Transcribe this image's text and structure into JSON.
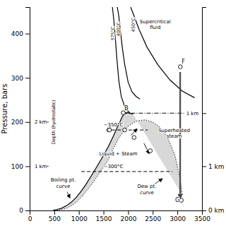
{
  "chart_data": {
    "type": "line",
    "ylabel": "Pressure, bars",
    "xlim": [
      0,
      3500
    ],
    "ylim": [
      0,
      460
    ],
    "xticks": [
      0,
      500,
      1000,
      1500,
      2000,
      2500,
      3000,
      3500
    ],
    "yticks": [
      0,
      100,
      200,
      300,
      400
    ],
    "y2lim": [
      0,
      460
    ],
    "y2ticks": [
      {
        "value": 0,
        "label": "0 km"
      },
      {
        "value": 100,
        "label": "1 km"
      },
      {
        "value": 220,
        "label": null
      }
    ],
    "series": [
      {
        "type": "area",
        "color": "#c8c8c8",
        "x": [
          480,
          550,
          650,
          750,
          850,
          950,
          1050,
          1150,
          1300,
          1450,
          1600,
          1700,
          1780,
          1840,
          1880,
          1920,
          1960,
          1990,
          2020,
          2060,
          2100,
          3100,
          3050,
          2950,
          2800,
          2650,
          2500,
          2350,
          2200,
          2100,
          2000,
          1900,
          1800,
          1700,
          1600,
          1450,
          1300,
          1150,
          1050,
          950,
          850,
          750,
          650,
          550
        ],
        "values": [
          0.5,
          2,
          5,
          11,
          19,
          30,
          44,
          60,
          87,
          115,
          145,
          168,
          188,
          202,
          212,
          218,
          221,
          221,
          220,
          219,
          218,
          35,
          75,
          125,
          165,
          188,
          200,
          205,
          203,
          198,
          190,
          178,
          162,
          140,
          115,
          90,
          65,
          44,
          30,
          19,
          11,
          5,
          2,
          0.5
        ]
      },
      {
        "type": "line",
        "color": "#000000",
        "line_style": "solid",
        "x": [
          480,
          550,
          650,
          750,
          850,
          950,
          1050,
          1150,
          1300,
          1450,
          1600,
          1700,
          1780,
          1840,
          1880,
          1920,
          1960,
          1990,
          2020,
          2060,
          2100
        ],
        "values": [
          0.5,
          2,
          5,
          11,
          19,
          30,
          44,
          60,
          87,
          115,
          145,
          168,
          188,
          202,
          212,
          218,
          221,
          221,
          220,
          219,
          218
        ]
      },
      {
        "type": "line",
        "color": "#000000",
        "line_style": "dotted",
        "x": [
          550,
          650,
          750,
          850,
          950,
          1050,
          1150,
          1300,
          1450,
          1600,
          1700,
          1800,
          1900,
          2000,
          2100,
          2200,
          2350,
          2500,
          2650,
          2800,
          2950,
          3050,
          3100
        ],
        "values": [
          0.5,
          2,
          5,
          11,
          19,
          30,
          44,
          65,
          90,
          115,
          140,
          162,
          178,
          190,
          198,
          203,
          205,
          200,
          188,
          165,
          125,
          75,
          35
        ]
      },
      {
        "type": "line",
        "color": "#000000",
        "line_style": "solid",
        "x": [
          1680,
          1710,
          1740,
          1770,
          1810,
          1860,
          1930,
          2000,
          2040
        ],
        "values": [
          460,
          430,
          390,
          345,
          295,
          258,
          235,
          224,
          220
        ]
      },
      {
        "type": "line",
        "color": "#000000",
        "line_style": "solid",
        "x": [
          1780,
          1810,
          1840,
          1880,
          1930,
          2000,
          2080,
          2160,
          2240
        ],
        "values": [
          460,
          440,
          410,
          370,
          330,
          290,
          268,
          258,
          252
        ]
      },
      {
        "type": "line",
        "color": "#000000",
        "line_style": "solid",
        "x": [
          2050,
          2120,
          2220,
          2380,
          2600,
          2850,
          3100,
          3350
        ],
        "values": [
          460,
          440,
          410,
          370,
          330,
          295,
          270,
          255
        ]
      },
      {
        "type": "line",
        "color": "#000000",
        "line_style": "dashed",
        "x": [
          1050,
          2900
        ],
        "values": [
          88,
          88
        ]
      },
      {
        "type": "line",
        "color": "#000000",
        "line_style": "dashed",
        "x": [
          1550,
          2400
        ],
        "values": [
          182,
          182
        ]
      },
      {
        "type": "line",
        "color": "#000000",
        "line_style": "dashdot",
        "x": [
          1900,
          3150
        ],
        "values": [
          220,
          220
        ]
      },
      {
        "type": "line",
        "color": "#000000",
        "line_style": "solid",
        "x": [
          350,
          380
        ],
        "values": [
          200,
          200
        ]
      },
      {
        "type": "line",
        "color": "#000000",
        "line_style": "solid",
        "x": [
          350,
          380
        ],
        "values": [
          100,
          100
        ]
      },
      {
        "type": "scatter",
        "color": "#000000",
        "marker": "circle",
        "x": [
          1900,
          1620,
          1930,
          2120,
          2450,
          3060,
          3080
        ],
        "values": [
          221,
          182,
          182,
          165,
          135,
          325,
          23
        ]
      }
    ],
    "arrows": [
      {
        "from": [
          1700,
          200
        ],
        "to": [
          1580,
          178
        ],
        "color": "#000000"
      },
      {
        "from": [
          2060,
          170
        ],
        "to": [
          2180,
          185
        ],
        "color": "#000000"
      },
      {
        "from": [
          2320,
          152
        ],
        "to": [
          2430,
          128
        ],
        "color": "#000000"
      },
      {
        "from": [
          3048,
          313
        ],
        "to": [
          3048,
          28
        ],
        "color": "#444444"
      },
      {
        "from": [
          3054,
          313
        ],
        "to": [
          3054,
          28
        ],
        "color": "#444444"
      },
      {
        "from": [
          3060,
          313
        ],
        "to": [
          3060,
          28
        ],
        "color": "#444444"
      },
      {
        "from": [
          3066,
          313
        ],
        "to": [
          3066,
          28
        ],
        "color": "#444444"
      }
    ],
    "annotations": [
      {
        "text": "375°C",
        "x": 1695,
        "y": 400,
        "orientation": "vertical"
      },
      {
        "text": "400°C",
        "x": 1810,
        "y": 410,
        "orientation": "vertical"
      },
      {
        "text": "450°C",
        "x": 2100,
        "y": 420,
        "orientation": "vertical"
      },
      {
        "text": "~300°C",
        "x": 1700,
        "y": 100
      },
      {
        "text": "~350°C",
        "x": 1700,
        "y": 194
      },
      {
        "text": "B",
        "x": 1965,
        "y": 232
      },
      {
        "text": "F",
        "x": 3120,
        "y": 336
      },
      {
        "text": "G",
        "x": 3000,
        "y": 23
      },
      {
        "text": "1 km",
        "x": 3306,
        "y": 220
      },
      {
        "text": "2 km",
        "x": 225,
        "y": 200
      },
      {
        "text": "1 km",
        "x": 225,
        "y": 100
      },
      {
        "text": "Depth (hydrostatic)",
        "x": 490,
        "y": 200,
        "orientation": "vertical"
      },
      {
        "text": "Supercritical\nfluid",
        "x": 2550,
        "y": 421
      },
      {
        "text": "Superheated\nsteam",
        "x": 2935,
        "y": 175
      },
      {
        "text": "Liquid + Steam",
        "x": 1800,
        "y": 128
      },
      {
        "text": "Boiling pt.\ncurve",
        "x": 680,
        "y": 62,
        "arrow_to": [
          820,
          28
        ],
        "color": "#000000"
      },
      {
        "text": "Dew pt.\ncurve",
        "x": 2380,
        "y": 48,
        "arrow_to": [
          2700,
          72
        ],
        "color": "#000000"
      }
    ]
  }
}
